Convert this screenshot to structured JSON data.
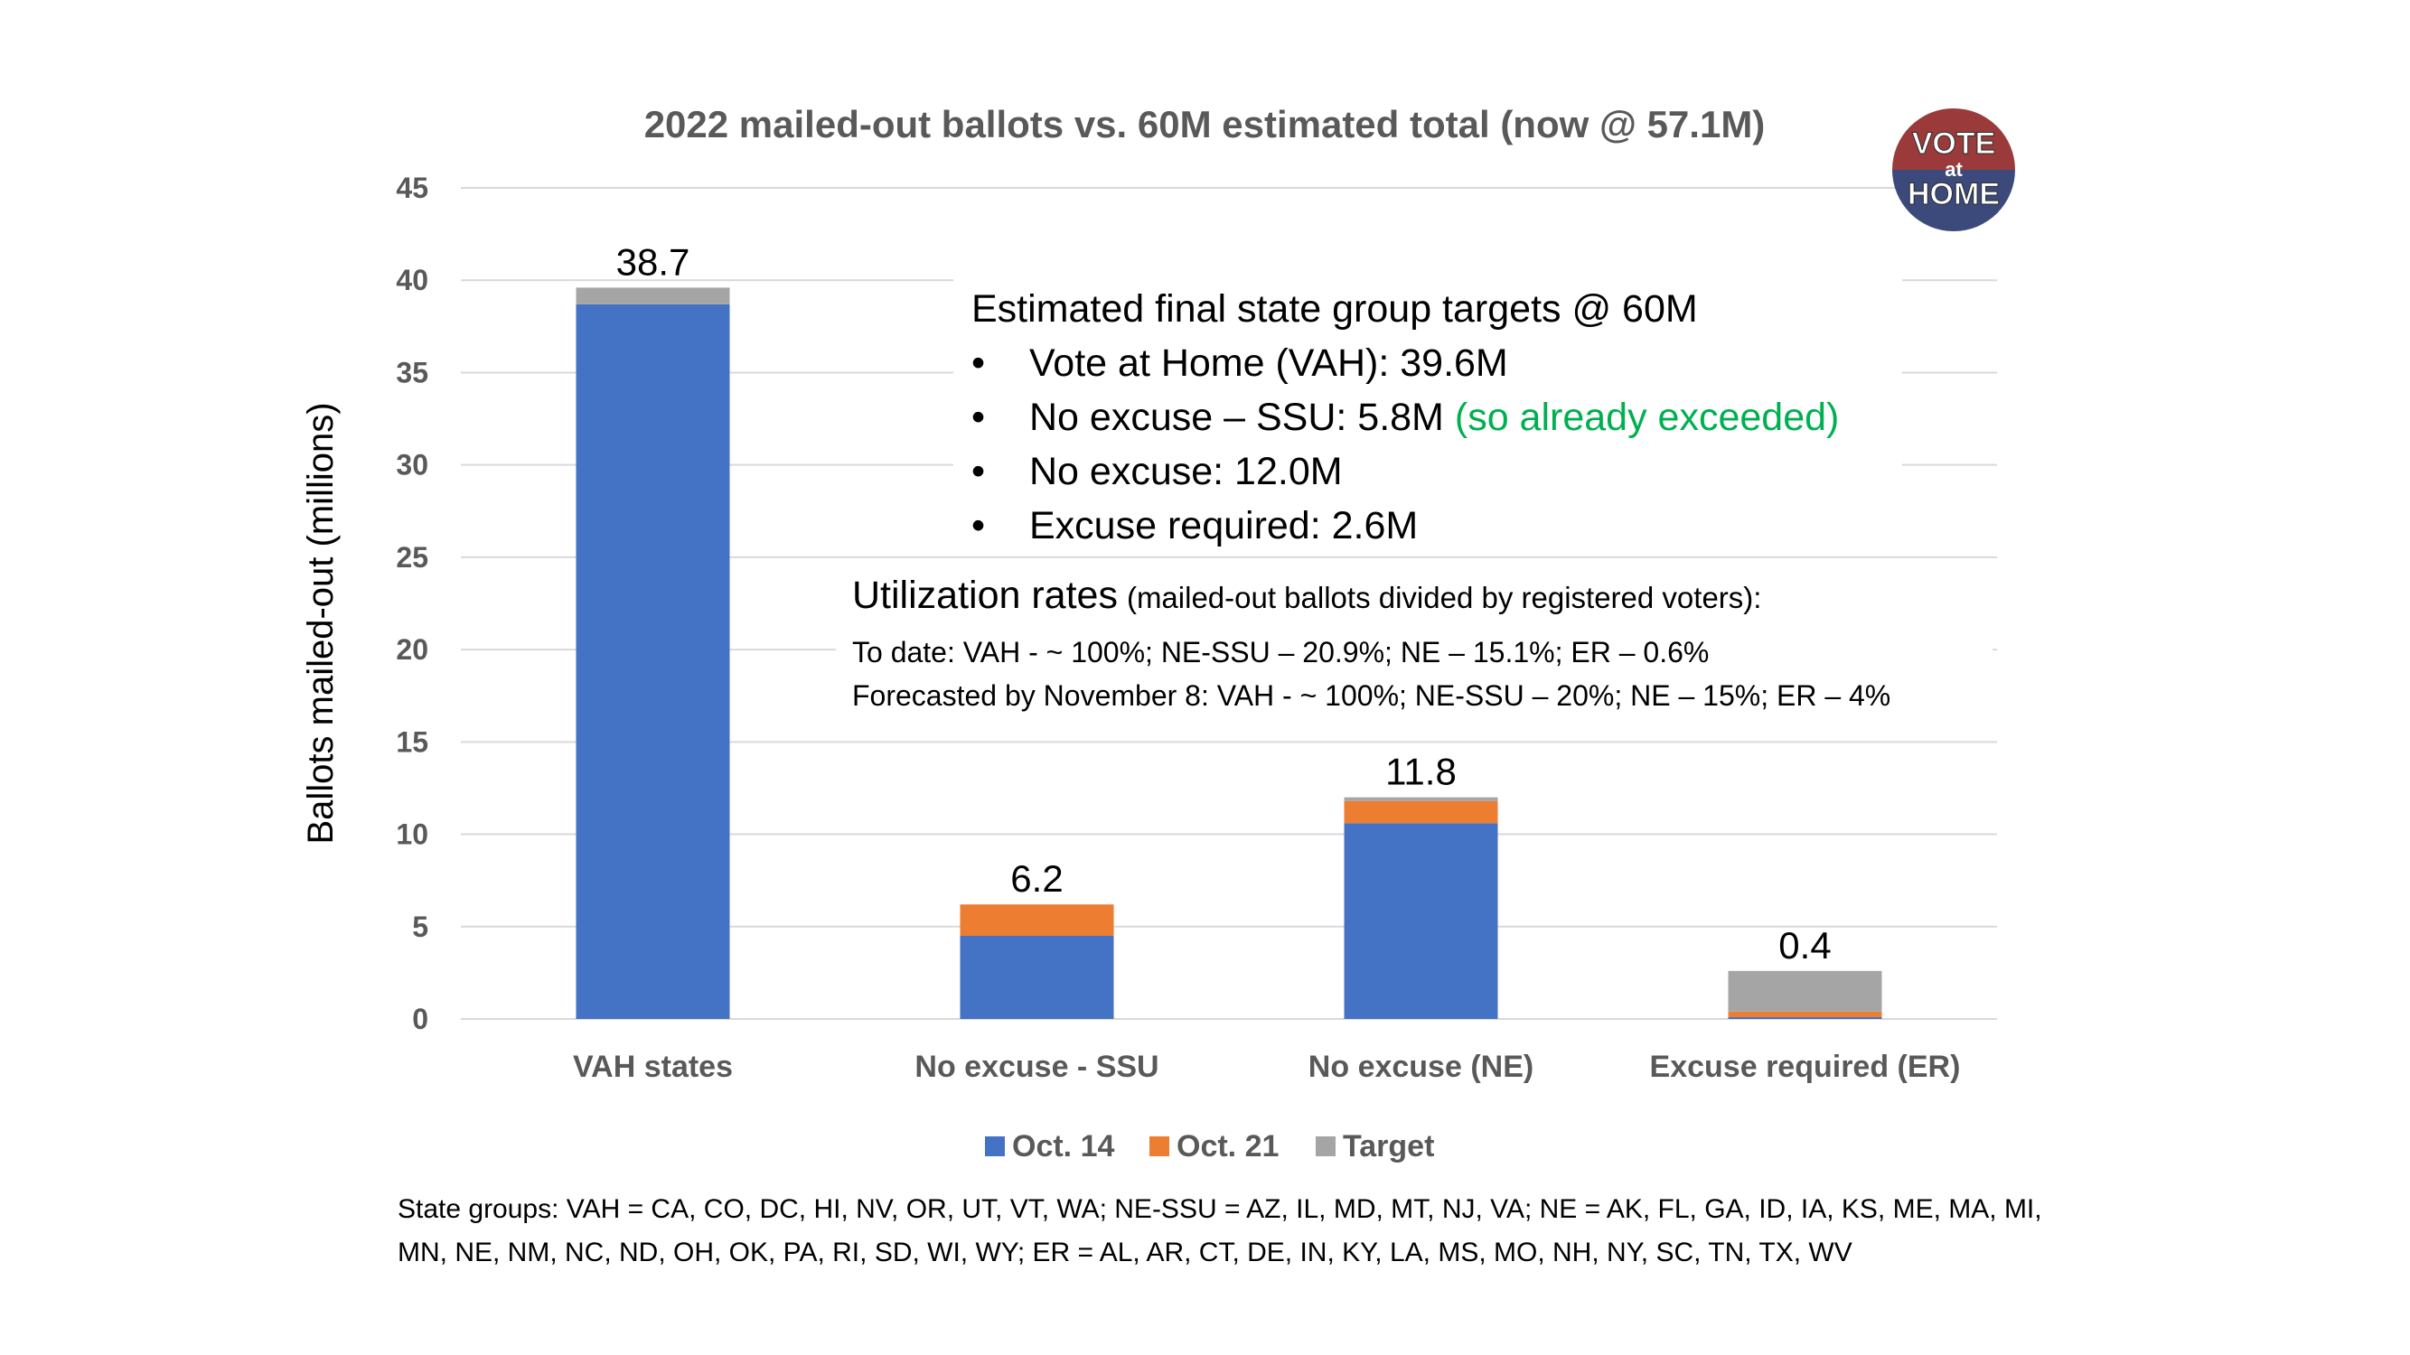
{
  "chart_data": {
    "type": "bar",
    "stacked": true,
    "title": "2022 mailed-out ballots vs. 60M estimated total (now @ 57.1M)",
    "ylabel": "Ballots mailed-out (millions)",
    "xlabel": "",
    "ylim": [
      0,
      45
    ],
    "yticks": [
      0,
      5,
      10,
      15,
      20,
      25,
      30,
      35,
      40,
      45
    ],
    "grid": true,
    "legend_position": "bottom",
    "categories": [
      "VAH states",
      "No excuse - SSU",
      "No excuse (NE)",
      "Excuse required (ER)"
    ],
    "series": [
      {
        "name": "Oct. 14",
        "color": "#4472c4",
        "values": [
          38.7,
          4.5,
          10.6,
          0.1
        ]
      },
      {
        "name": "Oct. 21",
        "color": "#ed7d31",
        "values": [
          0,
          1.7,
          1.2,
          0.3
        ]
      },
      {
        "name": "Target",
        "color": "#a5a5a5",
        "values": [
          0.9,
          0,
          0.2,
          2.2
        ]
      }
    ],
    "data_labels": [
      "38.7",
      "6.2",
      "11.8",
      "0.4"
    ],
    "annotations": [
      "Estimated final state group targets @ 60M",
      "Utilization rates"
    ]
  },
  "targets_box": {
    "heading": "Estimated final state group targets @ 60M",
    "bullet_char": "•",
    "items": [
      {
        "text": "Vote at Home (VAH): 39.6M",
        "note": ""
      },
      {
        "text": "No excuse – SSU: 5.8M",
        "note": "(so already exceeded)"
      },
      {
        "text": "No excuse: 12.0M",
        "note": ""
      },
      {
        "text": "Excuse required: 2.6M",
        "note": ""
      }
    ],
    "note_color": "#00b050"
  },
  "util_box": {
    "heading": "Utilization rates",
    "heading_note": "(mailed-out ballots divided by registered voters):",
    "line1": "To date: VAH - ~ 100%; NE-SSU – 20.9%; NE – 15.1%; ER – 0.6%",
    "line2": "Forecasted by November 8: VAH - ~ 100%; NE-SSU – 20%; NE – 15%; ER – 4%"
  },
  "footnote": {
    "line1": "State groups:  VAH = CA, CO, DC, HI, NV, OR, UT, VT, WA;   NE-SSU = AZ, IL, MD, MT, NJ, VA;   NE = AK, FL, GA, ID, IA, KS, ME, MA, MI,",
    "line2": "MN, NE, NM, NC, ND, OH, OK, PA, RI, SD, WI, WY;   ER = AL, AR, CT, DE, IN, KY, LA, MS, MO, NH, NY, SC, TN, TX, WV"
  },
  "logo": {
    "line1": "VOTE",
    "line2": "at",
    "line3": "HOME",
    "top_color": "#9b3a3a",
    "bottom_color": "#3b4a7a"
  }
}
